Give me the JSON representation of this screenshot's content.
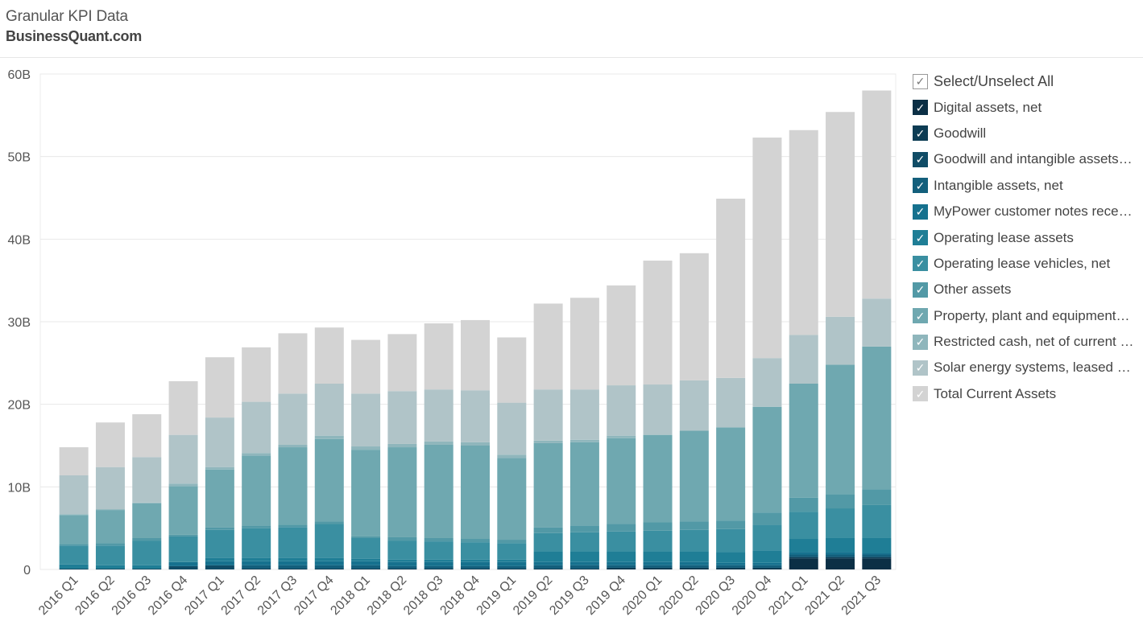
{
  "header": {
    "title": "Granular KPI Data",
    "subtitle": "BusinessQuant.com"
  },
  "legend": {
    "select_all_label": "Select/Unselect All",
    "items": [
      {
        "label": "Digital assets, net",
        "color": "#0b2f45"
      },
      {
        "label": "Goodwill",
        "color": "#0d3c54"
      },
      {
        "label": "Goodwill and intangible assets…",
        "color": "#104c66"
      },
      {
        "label": "Intangible assets, net",
        "color": "#135f7c"
      },
      {
        "label": "MyPower customer notes rece…",
        "color": "#16718e"
      },
      {
        "label": "Operating lease assets",
        "color": "#1f7e96"
      },
      {
        "label": "Operating lease vehicles, net",
        "color": "#3a8fa1"
      },
      {
        "label": "Other assets",
        "color": "#5299a6"
      },
      {
        "label": "Property, plant and equipment…",
        "color": "#6fa8b0"
      },
      {
        "label": "Restricted cash, net of current …",
        "color": "#8fb6bc"
      },
      {
        "label": "Solar energy systems, leased a…",
        "color": "#b0c4c8"
      },
      {
        "label": "Total Current Assets",
        "color": "#d3d3d3"
      }
    ]
  },
  "chart_data": {
    "type": "bar",
    "stacked": true,
    "y_unit_suffix": "B",
    "ylim": [
      0,
      60
    ],
    "yticks": [
      0,
      10,
      20,
      30,
      40,
      50,
      60
    ],
    "ytick_labels": [
      "0",
      "10B",
      "20B",
      "30B",
      "40B",
      "50B",
      "60B"
    ],
    "gridlines": true,
    "legend_position": "right",
    "categories": [
      "2016 Q1",
      "2016 Q2",
      "2016 Q3",
      "2016 Q4",
      "2017 Q1",
      "2017 Q2",
      "2017 Q3",
      "2017 Q4",
      "2018 Q1",
      "2018 Q2",
      "2018 Q3",
      "2018 Q4",
      "2019 Q1",
      "2019 Q2",
      "2019 Q3",
      "2019 Q4",
      "2020 Q1",
      "2020 Q2",
      "2020 Q3",
      "2020 Q4",
      "2021 Q1",
      "2021 Q2",
      "2021 Q3"
    ],
    "series": [
      {
        "name": "Digital assets, net",
        "values": [
          0,
          0,
          0,
          0,
          0,
          0,
          0,
          0,
          0,
          0,
          0,
          0,
          0,
          0,
          0,
          0,
          0,
          0,
          0,
          0,
          1.3,
          1.3,
          1.3
        ]
      },
      {
        "name": "Goodwill",
        "values": [
          0,
          0,
          0,
          0,
          0,
          0.1,
          0.1,
          0.1,
          0.1,
          0.1,
          0.1,
          0.1,
          0.1,
          0.1,
          0.1,
          0.2,
          0.2,
          0.2,
          0.2,
          0.2,
          0.2,
          0.2,
          0.2
        ]
      },
      {
        "name": "Goodwill and intangible assets…",
        "values": [
          0.1,
          0.1,
          0.1,
          0.4,
          0.5,
          0,
          0,
          0,
          0,
          0,
          0,
          0,
          0,
          0,
          0,
          0,
          0,
          0,
          0,
          0,
          0,
          0,
          0
        ]
      },
      {
        "name": "Intangible assets, net",
        "values": [
          0,
          0,
          0,
          0,
          0,
          0.4,
          0.4,
          0.4,
          0.4,
          0.3,
          0.3,
          0.3,
          0.3,
          0.4,
          0.4,
          0.3,
          0.3,
          0.3,
          0.3,
          0.3,
          0.3,
          0.3,
          0.3
        ]
      },
      {
        "name": "MyPower customer notes rece…",
        "values": [
          0,
          0,
          0,
          0.5,
          0.5,
          0.5,
          0.5,
          0.5,
          0.5,
          0.5,
          0.5,
          0.5,
          0.5,
          0.4,
          0.4,
          0.4,
          0.4,
          0.4,
          0.3,
          0.3,
          0.3,
          0.3,
          0.2
        ]
      },
      {
        "name": "Operating lease assets",
        "values": [
          0.5,
          0.4,
          0.4,
          0,
          0.4,
          0.4,
          0.4,
          0.4,
          0.3,
          0.3,
          0.3,
          0.3,
          0.3,
          1.3,
          1.3,
          1.3,
          1.3,
          1.3,
          1.3,
          1.5,
          1.6,
          1.7,
          1.8
        ]
      },
      {
        "name": "Operating lease vehicles, net",
        "values": [
          2.3,
          2.4,
          3.0,
          3.1,
          3.4,
          3.6,
          3.7,
          4.1,
          2.5,
          2.3,
          2.2,
          2.1,
          2.0,
          2.2,
          2.3,
          2.4,
          2.5,
          2.6,
          2.8,
          3.1,
          3.3,
          3.6,
          4.0
        ]
      },
      {
        "name": "Other assets",
        "values": [
          0.2,
          0.3,
          0.3,
          0.2,
          0.3,
          0.3,
          0.3,
          0.3,
          0.2,
          0.4,
          0.4,
          0.4,
          0.4,
          0.7,
          0.8,
          0.9,
          1.0,
          1.0,
          1.0,
          1.5,
          1.7,
          1.7,
          1.9
        ]
      },
      {
        "name": "Property, plant and equipment…",
        "values": [
          3.5,
          4.0,
          4.2,
          5.9,
          7.0,
          8.5,
          9.4,
          10.0,
          10.5,
          10.9,
          11.3,
          11.3,
          9.9,
          10.2,
          10.1,
          10.4,
          10.6,
          11.0,
          11.3,
          12.8,
          13.8,
          15.7,
          17.3
        ]
      },
      {
        "name": "Restricted cash, net of current …",
        "values": [
          0.1,
          0.1,
          0.1,
          0.3,
          0.3,
          0.3,
          0.3,
          0.4,
          0.4,
          0.4,
          0.4,
          0.4,
          0.4,
          0.3,
          0.3,
          0.3,
          0.0,
          0.0,
          0.0,
          0.0,
          0.0,
          0.0,
          0.0
        ]
      },
      {
        "name": "Solar energy systems, leased a…",
        "values": [
          4.7,
          5.1,
          5.5,
          5.9,
          6.0,
          6.2,
          6.2,
          6.3,
          6.4,
          6.4,
          6.3,
          6.3,
          6.3,
          6.2,
          6.1,
          6.1,
          6.1,
          6.1,
          6.0,
          5.9,
          5.9,
          5.8,
          5.8
        ]
      },
      {
        "name": "Total Current Assets",
        "values": [
          3.4,
          5.4,
          5.2,
          6.5,
          7.3,
          6.6,
          7.3,
          6.8,
          6.5,
          6.9,
          8.0,
          8.5,
          7.9,
          10.4,
          11.1,
          12.1,
          15.0,
          15.4,
          21.7,
          26.7,
          24.8,
          24.8,
          25.2
        ]
      }
    ]
  }
}
